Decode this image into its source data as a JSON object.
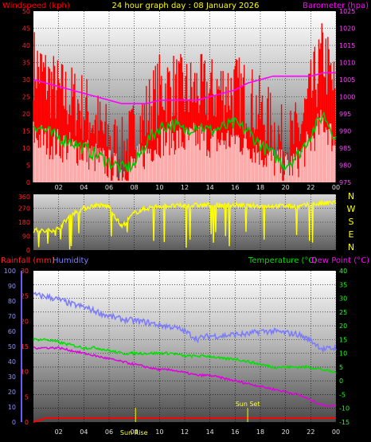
{
  "header": {
    "title": "24 hour graph day : 08 January 2026",
    "left_label": "Windspeed (kph)",
    "right_label": "Barometer (hpa)"
  },
  "bottom_header": {
    "rainfall_label": "Rainfall (mm)",
    "humidity_label": "Humidity",
    "temperature_label": "Temperature (°C)",
    "dewpoint_label": "Dew Point (°C)"
  },
  "colors": {
    "wind_gust": "#ff0000",
    "wind_avg": "#ffffff",
    "wind_avg_line": "#00c800",
    "barometer": "#ff00ff",
    "direction": "#ffff00",
    "humidity": "#7a7aff",
    "temperature": "#00e000",
    "dewpoint": "#e000e0",
    "rain": "#ff0000",
    "sun": "#c8c800",
    "grid": "#000000"
  },
  "time_ticks": [
    "02",
    "04",
    "06",
    "08",
    "10",
    "12",
    "14",
    "16",
    "18",
    "20",
    "22",
    "00"
  ],
  "events": {
    "sunrise": "Sun Rise",
    "sunset": "Sun Set"
  },
  "chart_data": [
    {
      "type": "line",
      "name": "wind-barometer",
      "title": "24 hour graph day : 08 January 2026",
      "ylabel": "Windspeed (kph)",
      "ylim": [
        0,
        50
      ],
      "yticks": [
        "0",
        "5",
        "10",
        "15",
        "20",
        "25",
        "30",
        "35",
        "40",
        "45",
        "50"
      ],
      "y2label": "Barometer (hpa)",
      "y2lim": [
        975,
        1025
      ],
      "y2ticks": [
        "975",
        "980",
        "985",
        "990",
        "995",
        "1000",
        "1005",
        "1010",
        "1015",
        "1020",
        "1025"
      ],
      "x": [
        0,
        1,
        2,
        3,
        4,
        5,
        6,
        7,
        8,
        9,
        10,
        11,
        12,
        13,
        14,
        15,
        16,
        17,
        18,
        19,
        20,
        21,
        22,
        23,
        24
      ],
      "series": [
        {
          "name": "Windspeed gust",
          "values": [
            35,
            30,
            26,
            24,
            22,
            17,
            12,
            8,
            14,
            20,
            27,
            28,
            26,
            27,
            26,
            27,
            27,
            25,
            20,
            16,
            10,
            14,
            25,
            38,
            25
          ]
        },
        {
          "name": "Windspeed average",
          "values": [
            14,
            12,
            11,
            10,
            9,
            7,
            5,
            3,
            5,
            9,
            12,
            13,
            12,
            13,
            12,
            12,
            13,
            11,
            9,
            6,
            4,
            6,
            12,
            18,
            11
          ]
        },
        {
          "name": "Windspeed average line",
          "values": [
            17,
            15,
            13,
            12,
            10,
            8,
            6,
            4,
            5,
            12,
            16,
            17,
            15,
            17,
            15,
            16,
            17,
            15,
            11,
            8,
            5,
            8,
            14,
            20,
            13
          ]
        },
        {
          "name": "Barometer",
          "values": [
            1005,
            1004,
            1003,
            1002,
            1001,
            1000,
            999,
            998,
            998,
            998,
            999,
            999,
            999,
            999,
            1000,
            1001,
            1002,
            1004,
            1005,
            1006,
            1006,
            1006,
            1006,
            1007,
            1007
          ]
        }
      ]
    },
    {
      "type": "scatter",
      "name": "wind-direction",
      "ylim": [
        0,
        360
      ],
      "yticks": [
        "0",
        "90",
        "180",
        "270",
        "360"
      ],
      "compass": [
        "N",
        "W",
        "S",
        "E",
        "N"
      ],
      "x": [
        0,
        1,
        2,
        3,
        4,
        5,
        6,
        7,
        8,
        9,
        10,
        11,
        12,
        13,
        14,
        15,
        16,
        17,
        18,
        19,
        20,
        21,
        22,
        23,
        24
      ],
      "series": [
        {
          "name": "Direction",
          "values": [
            130,
            120,
            140,
            230,
            270,
            290,
            280,
            150,
            240,
            270,
            285,
            285,
            285,
            290,
            290,
            290,
            290,
            285,
            285,
            285,
            285,
            280,
            295,
            300,
            310
          ]
        }
      ]
    },
    {
      "type": "line",
      "name": "temperature-humidity",
      "ylabel": "Rainfall (mm)",
      "ylim": [
        0,
        30
      ],
      "yticks": [
        "0",
        "5",
        "10",
        "15",
        "20",
        "25",
        "30"
      ],
      "humidity_ticks": [
        "0",
        "10",
        "20",
        "30",
        "40",
        "50",
        "60",
        "70",
        "80",
        "90",
        "100"
      ],
      "y2label": "Temperature (°C)",
      "y2lim": [
        -15,
        40
      ],
      "y2ticks": [
        "-15",
        "-10",
        "-5",
        "0",
        "5",
        "10",
        "15",
        "20",
        "25",
        "30",
        "35",
        "40"
      ],
      "x": [
        0,
        1,
        2,
        3,
        4,
        5,
        6,
        7,
        8,
        9,
        10,
        11,
        12,
        13,
        14,
        15,
        16,
        17,
        18,
        19,
        20,
        21,
        22,
        23,
        24
      ],
      "series": [
        {
          "name": "Humidity",
          "values": [
            84,
            83,
            81,
            78,
            76,
            73,
            70,
            68,
            67,
            66,
            64,
            63,
            60,
            55,
            57,
            57,
            58,
            58,
            60,
            60,
            59,
            58,
            54,
            48,
            49
          ]
        },
        {
          "name": "Temperature",
          "values": [
            15,
            15,
            14,
            13,
            12,
            12,
            11,
            10,
            10,
            10,
            10,
            10,
            9,
            9,
            9,
            8,
            8,
            7,
            6,
            5,
            5,
            5,
            5,
            4,
            3
          ]
        },
        {
          "name": "Dew Point",
          "values": [
            12,
            12,
            12,
            11,
            10,
            9,
            8,
            7,
            6,
            5,
            4,
            4,
            3,
            2,
            2,
            1,
            0,
            -1,
            -2,
            -3,
            -4,
            -5,
            -7,
            -9,
            -9
          ]
        },
        {
          "name": "Rainfall",
          "values": [
            0,
            0.8,
            0.8,
            0.8,
            0.8,
            0.8,
            0.8,
            0.8,
            0.8,
            0.8,
            0.8,
            0.8,
            0.8,
            0.8,
            0.8,
            0.8,
            0.8,
            0.8,
            0.8,
            0.8,
            0.8,
            0.8,
            0.8,
            0.8,
            0.8
          ]
        }
      ]
    }
  ]
}
